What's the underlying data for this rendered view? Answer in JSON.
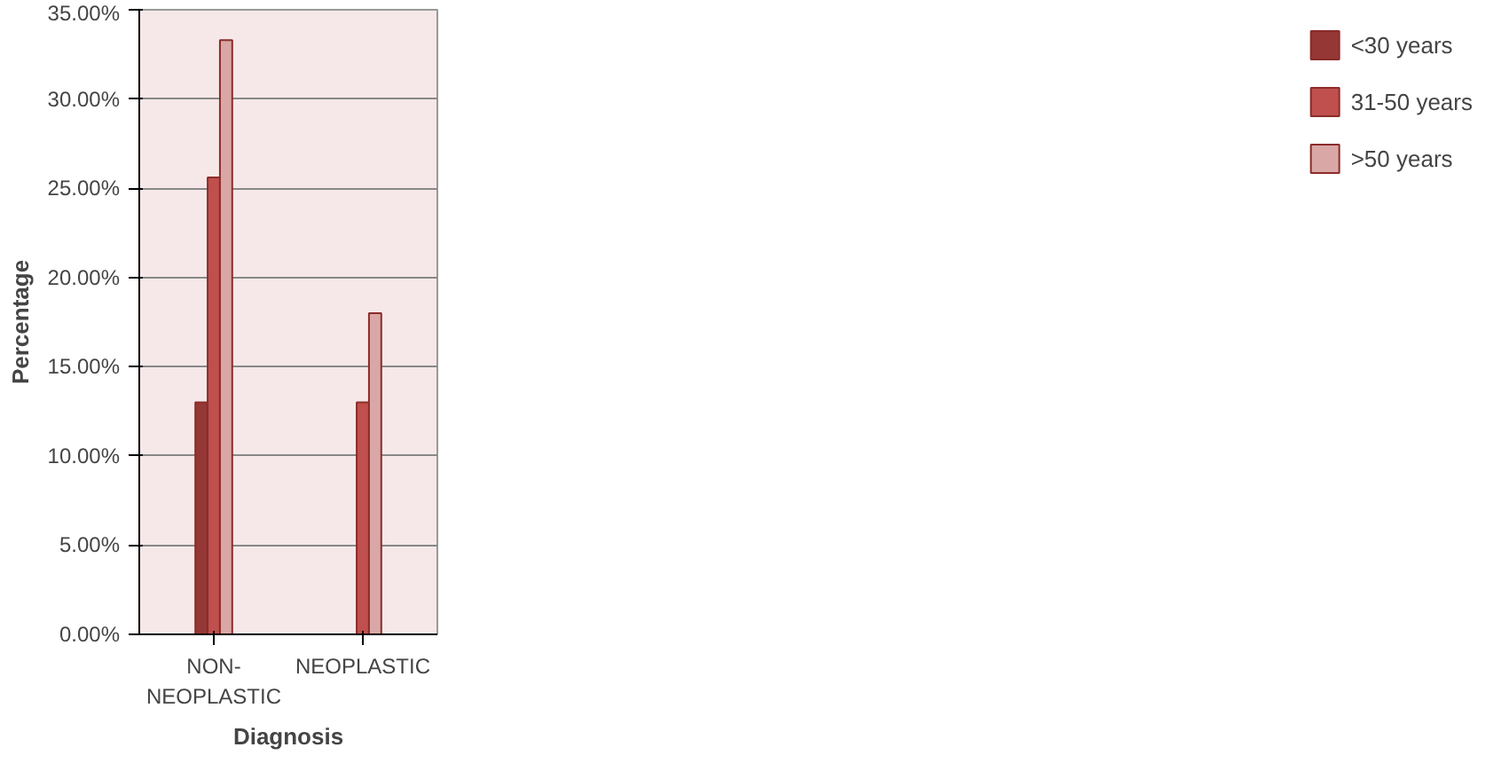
{
  "chart_data": {
    "type": "bar",
    "xlabel": "Diagnosis",
    "ylabel": "Percentage",
    "categories": [
      "NON-\nNEOPLASTIC",
      "NEOPLASTIC"
    ],
    "series": [
      {
        "name": "<30 years",
        "color": "#953735",
        "values": [
          13.0,
          0
        ]
      },
      {
        "name": "31-50 years",
        "color": "#c0504d",
        "values": [
          25.6,
          13.0
        ]
      },
      {
        "name": ">50 years",
        "color": "#d9a7a6",
        "values": [
          33.3,
          18.0
        ]
      }
    ],
    "ylim": [
      0,
      35
    ],
    "yticks": [
      {
        "value": 0,
        "label": "0.00%"
      },
      {
        "value": 5,
        "label": "5.00%"
      },
      {
        "value": 10,
        "label": "10.00%"
      },
      {
        "value": 15,
        "label": "15.00%"
      },
      {
        "value": 20,
        "label": "20.00%"
      },
      {
        "value": 25,
        "label": "25.00%"
      },
      {
        "value": 30,
        "label": "30.00%"
      },
      {
        "value": 35,
        "label": "35.00%"
      }
    ],
    "grid": "y",
    "legend": "right"
  }
}
